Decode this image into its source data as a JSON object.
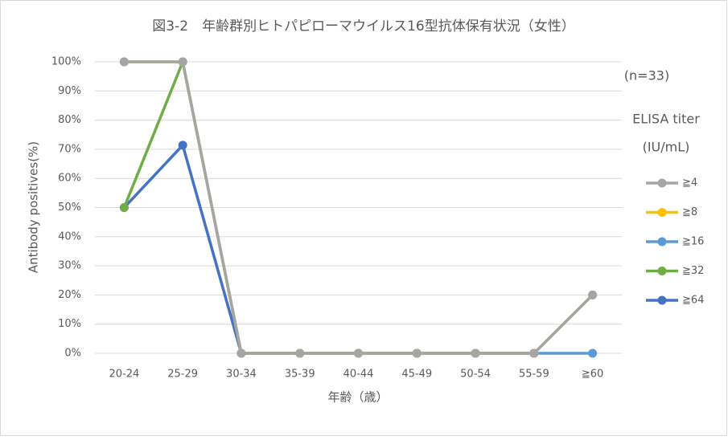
{
  "chart_data": {
    "type": "line",
    "title": "図3-2　年齢群別ヒトパピローマウイルス16型抗体保有状況（女性）",
    "x_label": "年齢（歳）",
    "y_label": "Antibody positives(%)",
    "annotations": [
      "(n=33)",
      "ELISA titer",
      "(IU/mL)"
    ],
    "categories": [
      "20-24",
      "25-29",
      "30-34",
      "35-39",
      "40-44",
      "45-49",
      "50-54",
      "55-59",
      "≧60"
    ],
    "series": [
      {
        "name": "≧4",
        "color": "#a5a5a5",
        "values": [
          100,
          100,
          0,
          0,
          0,
          0,
          0,
          0,
          20
        ]
      },
      {
        "name": "≧8",
        "color": "#ffc000",
        "values": [
          100,
          100,
          0,
          0,
          0,
          0,
          0,
          0,
          20
        ]
      },
      {
        "name": "≧16",
        "color": "#5b9bd5",
        "values": [
          100,
          100,
          0,
          0,
          0,
          0,
          0,
          0,
          0
        ]
      },
      {
        "name": "≧32",
        "color": "#70ad47",
        "values": [
          50,
          100,
          0,
          0,
          0,
          0,
          0,
          0,
          null
        ]
      },
      {
        "name": "≧64",
        "color": "#4472c4",
        "values": [
          50,
          71.4,
          0,
          0,
          0,
          0,
          0,
          0,
          null
        ]
      }
    ],
    "ylim": [
      0,
      100
    ],
    "yticks": [
      {
        "value": 0,
        "label": "0%"
      },
      {
        "value": 10,
        "label": "10%"
      },
      {
        "value": 20,
        "label": "20%"
      },
      {
        "value": 30,
        "label": "30%"
      },
      {
        "value": 40,
        "label": "40%"
      },
      {
        "value": 50,
        "label": "50%"
      },
      {
        "value": 60,
        "label": "60%"
      },
      {
        "value": 70,
        "label": "70%"
      },
      {
        "value": 80,
        "label": "80%"
      },
      {
        "value": 90,
        "label": "90%"
      },
      {
        "value": 100,
        "label": "100%"
      }
    ],
    "grid": true,
    "legend": "right"
  }
}
